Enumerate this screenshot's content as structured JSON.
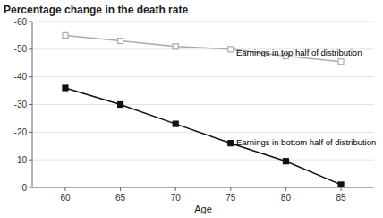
{
  "chart_data": {
    "type": "line",
    "title": "Percentage change in the death rate",
    "xlabel": "Age",
    "x": [
      60,
      65,
      70,
      75,
      80,
      85
    ],
    "series": [
      {
        "color": "#aaaaaa",
        "marker": "square-open",
        "values": [
          -55,
          -53,
          -51,
          -50,
          -47.5,
          -45.5
        ]
      },
      {
        "color": "#111111",
        "marker": "square",
        "values": [
          -36,
          -30,
          -23,
          -16,
          -9.5,
          -1
        ]
      }
    ],
    "xlim": [
      57,
      88
    ],
    "ylim": [
      0,
      -60
    ],
    "xticks": [
      60,
      65,
      70,
      75,
      80,
      85
    ],
    "yticks": [
      0,
      -10,
      -20,
      -30,
      -40,
      -50,
      -60
    ],
    "grid": "y",
    "annotations": [
      {
        "text": "Earnings in top half of distribution",
        "x": 75.5,
        "y": -48.5
      },
      {
        "text": "Earnings in bottom half of distribution",
        "x": 75.5,
        "y": -16.0
      }
    ]
  }
}
